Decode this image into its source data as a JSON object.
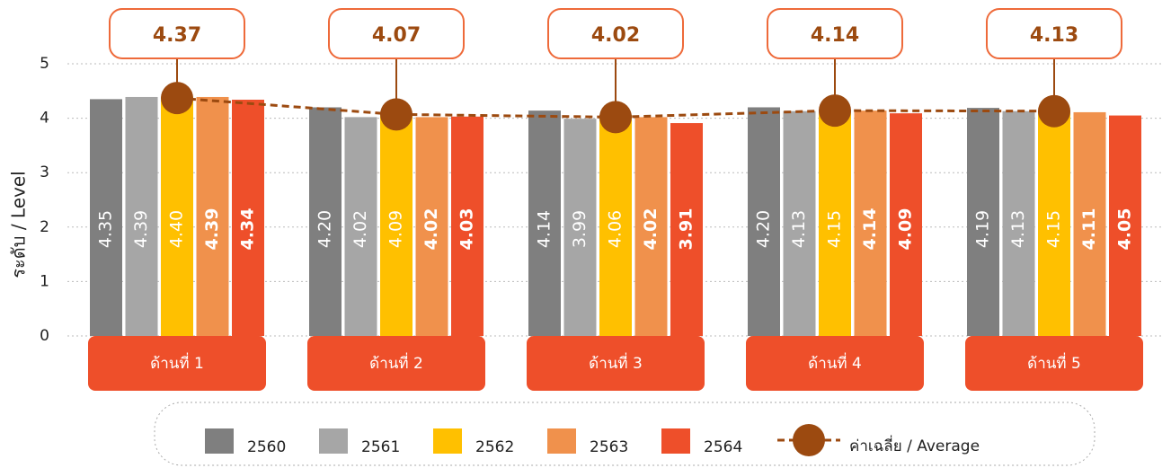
{
  "chart_data": {
    "type": "bar",
    "y_label": "ระดับ / Level",
    "categories": [
      "ด้านที่ 1",
      "ด้านที่ 2",
      "ด้านที่ 3",
      "ด้านที่ 4",
      "ด้านที่ 5"
    ],
    "ylim": [
      0,
      5
    ],
    "yticks": [
      0,
      1,
      2,
      3,
      4,
      5
    ],
    "grid": true,
    "series": [
      {
        "name": "2560",
        "color": "#7f7f7f",
        "values": [
          4.35,
          4.2,
          4.14,
          4.2,
          4.19
        ],
        "value_labels": [
          "4.35",
          "4.20",
          "4.14",
          "4.20",
          "4.19"
        ]
      },
      {
        "name": "2561",
        "color": "#a6a6a6",
        "values": [
          4.39,
          4.02,
          3.99,
          4.13,
          4.13
        ],
        "value_labels": [
          "4.39",
          "4.02",
          "3.99",
          "4.13",
          "4.13"
        ]
      },
      {
        "name": "2562",
        "color": "#ffc000",
        "values": [
          4.4,
          4.09,
          4.06,
          4.15,
          4.15
        ],
        "value_labels": [
          "4.40",
          "4.09",
          "4.06",
          "4.15",
          "4.15"
        ]
      },
      {
        "name": "2563",
        "color": "#f0914c",
        "values": [
          4.39,
          4.02,
          4.02,
          4.14,
          4.11
        ],
        "value_labels": [
          "4.39",
          "4.02",
          "4.02",
          "4.14",
          "4.11"
        ]
      },
      {
        "name": "2564",
        "color": "#ee4f2a",
        "values": [
          4.34,
          4.03,
          3.91,
          4.09,
          4.05
        ],
        "value_labels": [
          "4.34",
          "4.03",
          "3.91",
          "4.09",
          "4.05"
        ]
      },
      {
        "name": "ค่าเฉลี่ย / Average",
        "type": "line",
        "color": "#9c4a10",
        "values": [
          4.37,
          4.07,
          4.02,
          4.14,
          4.13
        ]
      }
    ]
  }
}
